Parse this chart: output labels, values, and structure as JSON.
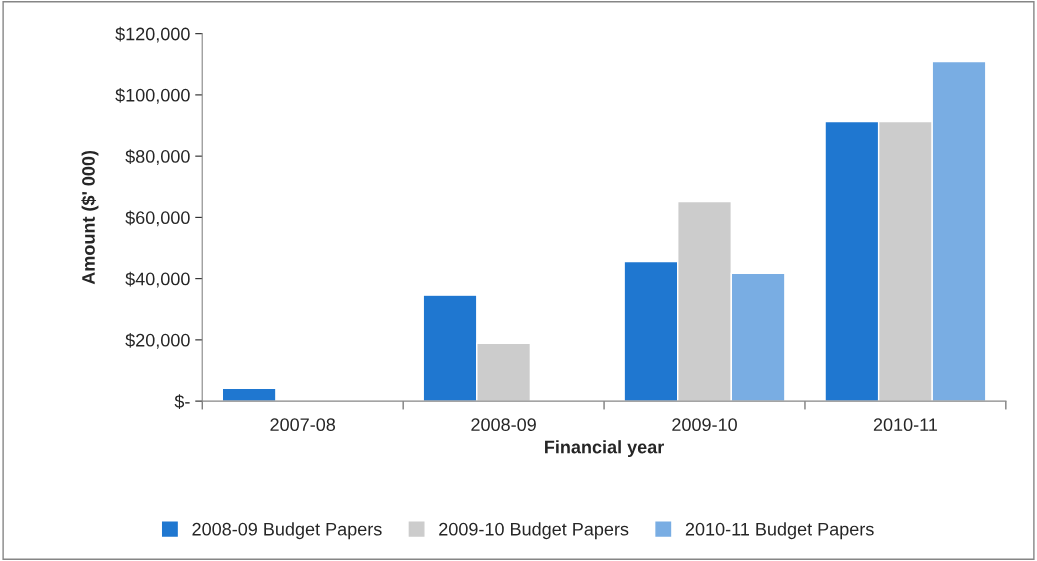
{
  "chart_data": {
    "type": "bar",
    "xlabel": "Financial year",
    "ylabel": "Amount ($' 000)",
    "categories": [
      "2007-08",
      "2008-09",
      "2009-10",
      "2010-11"
    ],
    "series": [
      {
        "name": "2008-09 Budget Papers",
        "color": "#1f77d0",
        "values": [
          4200,
          34600,
          45600,
          91300
        ]
      },
      {
        "name": "2009-10 Budget Papers",
        "color": "#cccccc",
        "values": [
          null,
          18900,
          65200,
          91300
        ]
      },
      {
        "name": "2010-11 Budget Papers",
        "color": "#79ade3",
        "values": [
          null,
          null,
          41700,
          110900
        ]
      }
    ],
    "ylim": [
      0,
      120000
    ],
    "yticks": [
      {
        "value": 0,
        "label": "$-"
      },
      {
        "value": 20000,
        "label": "$20,000"
      },
      {
        "value": 40000,
        "label": "$40,000"
      },
      {
        "value": 60000,
        "label": "$60,000"
      },
      {
        "value": 80000,
        "label": "$80,000"
      },
      {
        "value": 100000,
        "label": "$100,000"
      },
      {
        "value": 120000,
        "label": "$120,000"
      }
    ],
    "grid": false,
    "legend": "bottom"
  }
}
